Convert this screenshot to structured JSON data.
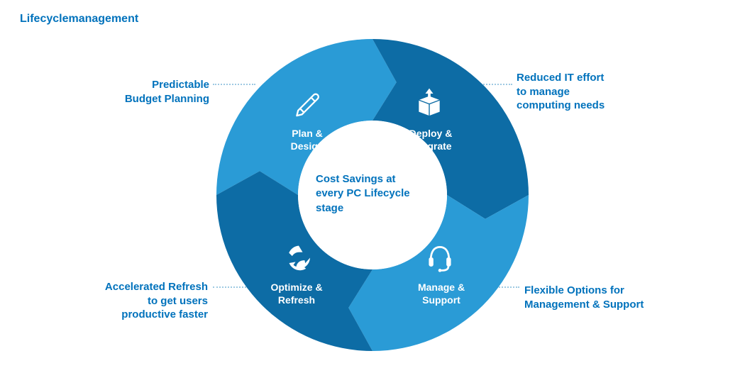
{
  "title": "Lifecyclemanagement",
  "center_text": "Cost Savings at every PC Lifecycle stage",
  "color_text_primary": "#0072bc",
  "segments": [
    {
      "name": "plan-design",
      "label": "Plan &\nDesign",
      "icon": "pencil",
      "color": "#2a9bd6",
      "callout": "Predictable\nBudget Planning",
      "callout_pos": "tl"
    },
    {
      "name": "deploy-integrate",
      "label": "Deploy &\nIntegrate",
      "icon": "box",
      "color": "#0d6ca5",
      "callout": "Reduced IT effort\nto manage\ncomputing needs",
      "callout_pos": "tr"
    },
    {
      "name": "manage-support",
      "label": "Manage &\nSupport",
      "icon": "headset",
      "color": "#2a9bd6",
      "callout": "Flexible Options for\nManagement & Support",
      "callout_pos": "br"
    },
    {
      "name": "optimize-refresh",
      "label": "Optimize &\nRefresh",
      "icon": "recycle",
      "color": "#0d6ca5",
      "callout": "Accelerated Refresh\nto get users\nproductive faster",
      "callout_pos": "bl"
    }
  ],
  "chart": {
    "type": "donut-cycle",
    "outer_radius": 220,
    "inner_radius": 105,
    "center_bg": "#ffffff",
    "background": "#ffffff",
    "arrow_notch": 24,
    "label_fontsize": 14,
    "callout_fontsize": 15
  }
}
